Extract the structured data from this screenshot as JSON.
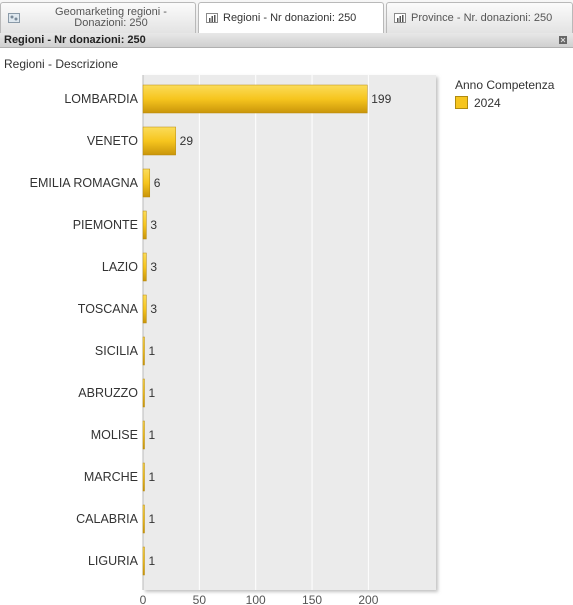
{
  "tabs": [
    {
      "label_line1": "Geomarketing regioni -",
      "label_line2": "Donazioni: 250",
      "icon": "map-icon"
    },
    {
      "label": "Regioni - Nr donazioni: 250",
      "icon": "chart-icon"
    },
    {
      "label": "Province - Nr. donazioni: 250",
      "icon": "chart-icon"
    }
  ],
  "panel_title": "Regioni - Nr donazioni: 250",
  "dimension_label": "Regioni - Descrizione",
  "legend": {
    "title": "Anno Competenza",
    "items": [
      "2024"
    ]
  },
  "colors": {
    "bar": "#f6c51e",
    "bar_dark": "#c9950a",
    "plot_bg": "#ebebeb"
  },
  "chart_data": {
    "type": "bar",
    "orientation": "horizontal",
    "categories": [
      "LOMBARDIA",
      "VENETO",
      "EMILIA ROMAGNA",
      "PIEMONTE",
      "LAZIO",
      "TOSCANA",
      "SICILIA",
      "ABRUZZO",
      "MOLISE",
      "MARCHE",
      "CALABRIA",
      "LIGURIA"
    ],
    "series": [
      {
        "name": "2024",
        "values": [
          199,
          29,
          6,
          3,
          3,
          3,
          1,
          1,
          1,
          1,
          1,
          1
        ]
      }
    ],
    "xlim": [
      0,
      260
    ],
    "xticks": [
      0,
      50,
      100,
      150,
      200
    ],
    "title": "",
    "xlabel": "",
    "ylabel": "Regioni - Descrizione",
    "legend_placement": "top-right",
    "grid": true
  }
}
